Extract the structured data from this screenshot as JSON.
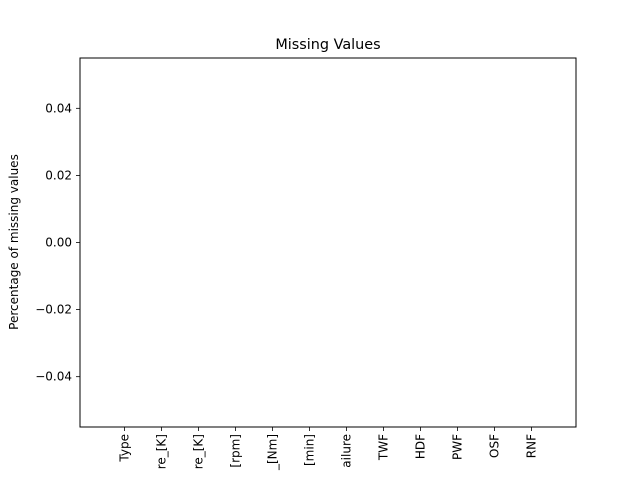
{
  "chart_data": {
    "type": "bar",
    "title": "Missing Values",
    "xlabel": "",
    "ylabel": "Percentage of missing values",
    "categories": [
      "Type",
      "re_[K]",
      "re_[K]",
      "[rpm]",
      "_[Nm]",
      "[min]",
      "ailure",
      "TWF",
      "HDF",
      "PWF",
      "OSF",
      "RNF"
    ],
    "values": [
      0,
      0,
      0,
      0,
      0,
      0,
      0,
      0,
      0,
      0,
      0,
      0
    ],
    "ylim": [
      -0.055,
      0.055
    ],
    "yticks": [
      -0.04,
      -0.02,
      0.0,
      0.02,
      0.04
    ],
    "ytick_labels": [
      "−0.04",
      "−0.02",
      "0.00",
      "0.02",
      "0.04"
    ],
    "grid": false,
    "legend": "none"
  }
}
